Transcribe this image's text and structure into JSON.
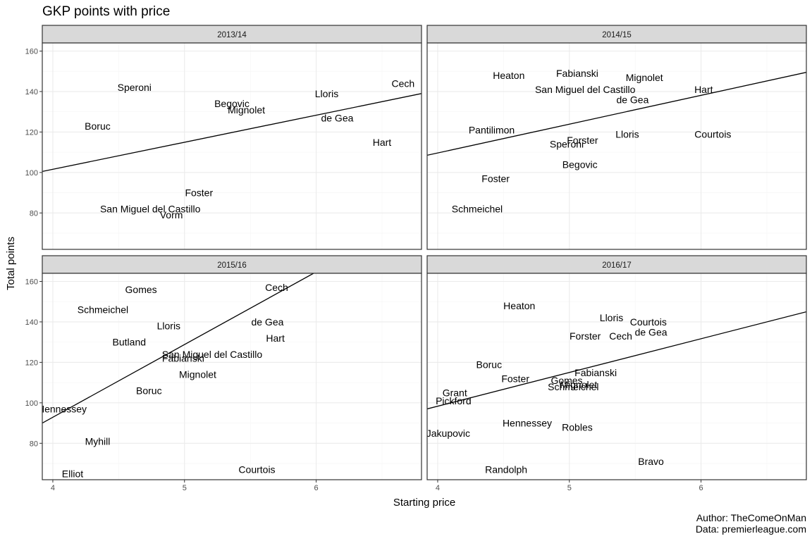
{
  "chart_data": {
    "type": "scatter",
    "title": "GKP points with price",
    "xlabel": "Starting price",
    "ylabel": "Total points",
    "xlim": [
      3.92,
      6.8
    ],
    "ylim": [
      62,
      164
    ],
    "x_ticks": [
      4,
      5,
      6
    ],
    "y_ticks": [
      80,
      100,
      120,
      140,
      160
    ],
    "grid": true,
    "caption": [
      "Author: TheComeOnMan",
      "Data: premierleague.com"
    ],
    "panels": [
      {
        "name": "2013/14",
        "trend": [
          [
            3.92,
            100.5
          ],
          [
            6.8,
            139
          ]
        ],
        "points": [
          {
            "label": "Speroni",
            "x": 4.62,
            "y": 142
          },
          {
            "label": "Cech",
            "x": 6.66,
            "y": 144
          },
          {
            "label": "Lloris",
            "x": 6.08,
            "y": 139
          },
          {
            "label": "Begovic",
            "x": 5.36,
            "y": 134
          },
          {
            "label": "Mignolet",
            "x": 5.47,
            "y": 131
          },
          {
            "label": "de Gea",
            "x": 6.16,
            "y": 127
          },
          {
            "label": "Boruc",
            "x": 4.34,
            "y": 123
          },
          {
            "label": "Hart",
            "x": 6.5,
            "y": 115
          },
          {
            "label": "Foster",
            "x": 5.11,
            "y": 90
          },
          {
            "label": "San Miguel del Castillo",
            "x": 4.74,
            "y": 82
          },
          {
            "label": "Vorm",
            "x": 4.9,
            "y": 79
          }
        ]
      },
      {
        "name": "2014/15",
        "trend": [
          [
            3.92,
            108.5
          ],
          [
            6.8,
            149.5
          ]
        ],
        "points": [
          {
            "label": "Fabianski",
            "x": 5.06,
            "y": 149
          },
          {
            "label": "Heaton",
            "x": 4.54,
            "y": 148
          },
          {
            "label": "Mignolet",
            "x": 5.57,
            "y": 147
          },
          {
            "label": "San Miguel del Castillo",
            "x": 5.12,
            "y": 141
          },
          {
            "label": "Hart",
            "x": 6.02,
            "y": 141
          },
          {
            "label": "de Gea",
            "x": 5.48,
            "y": 136
          },
          {
            "label": "Pantilimon",
            "x": 4.41,
            "y": 121
          },
          {
            "label": "Lloris",
            "x": 5.44,
            "y": 119
          },
          {
            "label": "Courtois",
            "x": 6.09,
            "y": 119
          },
          {
            "label": "Forster",
            "x": 5.1,
            "y": 116
          },
          {
            "label": "Speroni",
            "x": 4.98,
            "y": 114
          },
          {
            "label": "Begovic",
            "x": 5.08,
            "y": 104
          },
          {
            "label": "Foster",
            "x": 4.44,
            "y": 97
          },
          {
            "label": "Schmeichel",
            "x": 4.3,
            "y": 82
          }
        ]
      },
      {
        "name": "2015/16",
        "trend": [
          [
            3.92,
            90
          ],
          [
            5.98,
            164
          ]
        ],
        "points": [
          {
            "label": "Gomes",
            "x": 4.67,
            "y": 156
          },
          {
            "label": "Cech",
            "x": 5.7,
            "y": 157
          },
          {
            "label": "Schmeichel",
            "x": 4.38,
            "y": 146
          },
          {
            "label": "de Gea",
            "x": 5.63,
            "y": 140
          },
          {
            "label": "Lloris",
            "x": 4.88,
            "y": 138
          },
          {
            "label": "Hart",
            "x": 5.69,
            "y": 132
          },
          {
            "label": "Butland",
            "x": 4.58,
            "y": 130
          },
          {
            "label": "San Miguel del Castillo",
            "x": 5.21,
            "y": 124
          },
          {
            "label": "Fabianski",
            "x": 4.99,
            "y": 122
          },
          {
            "label": "Mignolet",
            "x": 5.1,
            "y": 114
          },
          {
            "label": "Boruc",
            "x": 4.73,
            "y": 106
          },
          {
            "label": "Hennessey",
            "x": 4.07,
            "y": 97
          },
          {
            "label": "Myhill",
            "x": 4.34,
            "y": 81
          },
          {
            "label": "Courtois",
            "x": 5.55,
            "y": 67
          },
          {
            "label": "Elliot",
            "x": 4.15,
            "y": 65
          }
        ]
      },
      {
        "name": "2016/17",
        "trend": [
          [
            3.92,
            97
          ],
          [
            6.8,
            145
          ]
        ],
        "points": [
          {
            "label": "Heaton",
            "x": 4.62,
            "y": 148
          },
          {
            "label": "Lloris",
            "x": 5.32,
            "y": 142
          },
          {
            "label": "Courtois",
            "x": 5.6,
            "y": 140
          },
          {
            "label": "de Gea",
            "x": 5.62,
            "y": 135
          },
          {
            "label": "Forster",
            "x": 5.12,
            "y": 133
          },
          {
            "label": "Cech",
            "x": 5.39,
            "y": 133
          },
          {
            "label": "Boruc",
            "x": 4.39,
            "y": 119
          },
          {
            "label": "Fabianski",
            "x": 5.2,
            "y": 115
          },
          {
            "label": "Foster",
            "x": 4.59,
            "y": 112
          },
          {
            "label": "Gomes",
            "x": 4.98,
            "y": 111
          },
          {
            "label": "Mignolet",
            "x": 5.07,
            "y": 109
          },
          {
            "label": "Schmeichel",
            "x": 5.03,
            "y": 108
          },
          {
            "label": "Grant",
            "x": 4.13,
            "y": 105
          },
          {
            "label": "Pickford",
            "x": 4.12,
            "y": 101
          },
          {
            "label": "Hennessey",
            "x": 4.68,
            "y": 90
          },
          {
            "label": "Robles",
            "x": 5.06,
            "y": 88
          },
          {
            "label": "Jakupovic",
            "x": 4.08,
            "y": 85
          },
          {
            "label": "Bravo",
            "x": 5.62,
            "y": 71
          },
          {
            "label": "Randolph",
            "x": 4.52,
            "y": 67
          }
        ]
      }
    ]
  }
}
